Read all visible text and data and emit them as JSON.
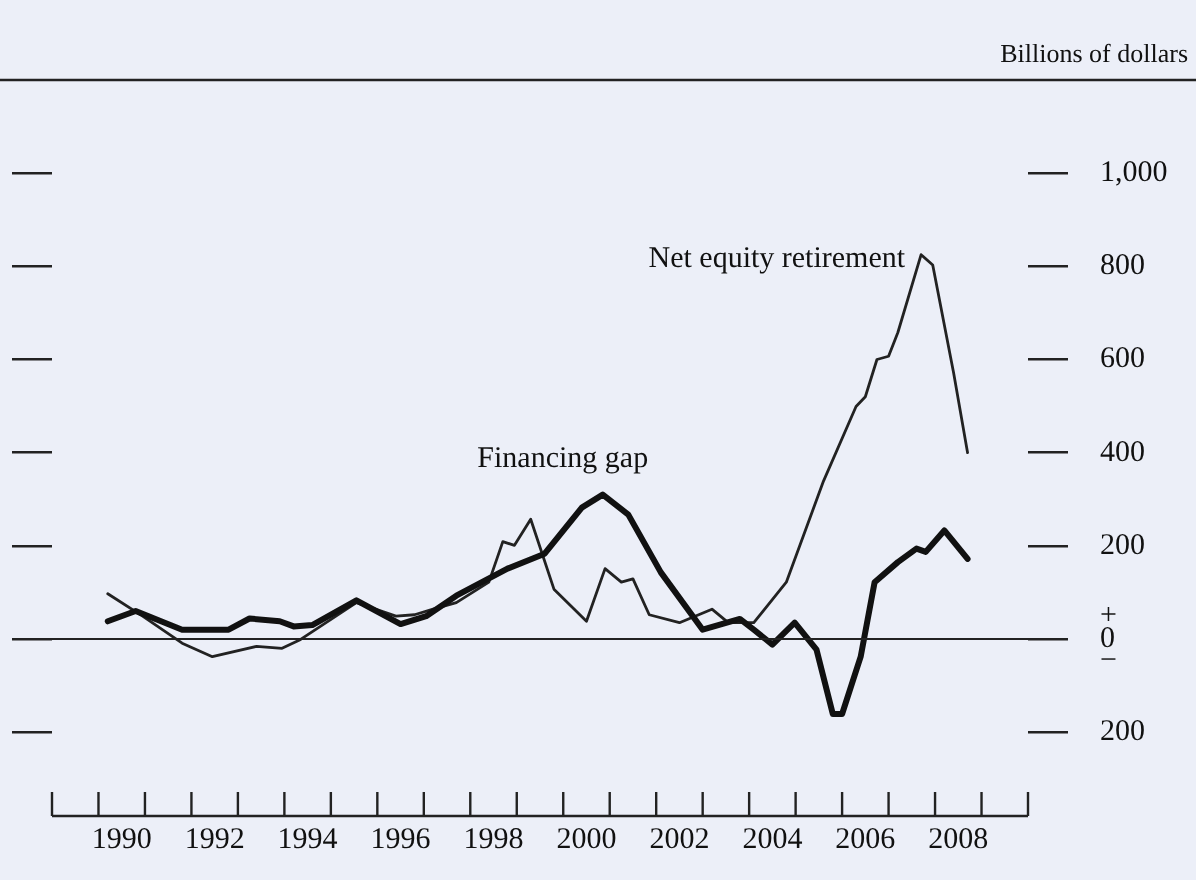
{
  "chart_data": {
    "type": "line",
    "ylabel": "Billions of dollars",
    "xlim": [
      1989,
      2010
    ],
    "xticks": [
      {
        "value": 1989,
        "label": null
      },
      {
        "value": 1990,
        "label": null
      },
      {
        "value": 1990.5,
        "label": "1990"
      },
      {
        "value": 1991,
        "label": null
      },
      {
        "value": 1992,
        "label": null
      },
      {
        "value": 1992.5,
        "label": "1992"
      },
      {
        "value": 1993,
        "label": null
      },
      {
        "value": 1994,
        "label": null
      },
      {
        "value": 1994.5,
        "label": "1994"
      },
      {
        "value": 1995,
        "label": null
      },
      {
        "value": 1996,
        "label": null
      },
      {
        "value": 1996.5,
        "label": "1996"
      },
      {
        "value": 1997,
        "label": null
      },
      {
        "value": 1998,
        "label": null
      },
      {
        "value": 1998.5,
        "label": "1998"
      },
      {
        "value": 1999,
        "label": null
      },
      {
        "value": 2000,
        "label": null
      },
      {
        "value": 2000.5,
        "label": "2000"
      },
      {
        "value": 2001,
        "label": null
      },
      {
        "value": 2002,
        "label": null
      },
      {
        "value": 2002.5,
        "label": "2002"
      },
      {
        "value": 2003,
        "label": null
      },
      {
        "value": 2004,
        "label": null
      },
      {
        "value": 2004.5,
        "label": "2004"
      },
      {
        "value": 2005,
        "label": null
      },
      {
        "value": 2006,
        "label": null
      },
      {
        "value": 2006.5,
        "label": "2006"
      },
      {
        "value": 2007,
        "label": null
      },
      {
        "value": 2008,
        "label": null
      },
      {
        "value": 2008.5,
        "label": "2008"
      },
      {
        "value": 2009,
        "label": null
      },
      {
        "value": 2010,
        "label": null
      }
    ],
    "ylim": [
      -380,
      1200
    ],
    "yticks": [
      {
        "value": -200,
        "label": "200"
      },
      {
        "value": 0,
        "label": "+\n0\n−"
      },
      200,
      400,
      600,
      800,
      {
        "value": 1000,
        "label": "1,000"
      }
    ],
    "grid": false,
    "legend": false,
    "marker": "none",
    "line_style": "solid",
    "ref_lines": [
      {
        "axis": "y",
        "value": 0
      }
    ],
    "series": [
      {
        "name": "Financing gap",
        "color": "#111111",
        "x": [
          1990.2,
          1990.8,
          1991.8,
          1992.8,
          1993.25,
          1993.9,
          1994.2,
          1994.6,
          1995.55,
          1996.5,
          1997.05,
          1997.7,
          1998.8,
          1999.6,
          2000.4,
          2000.85,
          2001.4,
          2002.1,
          2003.0,
          2003.8,
          2004.1,
          2004.5,
          2004.98,
          2005.45,
          2005.8,
          2006.0,
          2006.4,
          2006.7,
          2007.2,
          2007.6,
          2007.8,
          2008.2,
          2008.7
        ],
        "values": [
          38,
          60,
          20,
          20,
          44,
          38,
          27,
          30,
          83,
          32,
          49,
          93,
          151,
          183,
          282,
          310,
          267,
          143,
          20,
          43,
          20,
          -12,
          35,
          -23,
          -161,
          -161,
          -38,
          122,
          165,
          194,
          187,
          233,
          172
        ]
      },
      {
        "name": "Net equity retirement",
        "color": "#222222",
        "x": [
          1990.2,
          1990.95,
          1991.8,
          1992.45,
          1993.4,
          1993.95,
          1994.35,
          1995.55,
          1996.4,
          1996.8,
          1997.2,
          1997.7,
          1998.4,
          1998.7,
          1998.95,
          1999.3,
          1999.8,
          2000.5,
          2000.9,
          2001.25,
          2001.5,
          2001.85,
          2002.5,
          2003.2,
          2003.55,
          2004.1,
          2004.8,
          2005.6,
          2006.3,
          2006.5,
          2006.75,
          2007.0,
          2007.2,
          2007.7,
          2007.95,
          2008.4,
          2008.7
        ],
        "values": [
          97,
          49,
          -9,
          -38,
          -16,
          -20,
          -1,
          78,
          49,
          52,
          64,
          78,
          122,
          209,
          201,
          257,
          107,
          38,
          151,
          122,
          129,
          52,
          35,
          64,
          35,
          35,
          122,
          339,
          499,
          520,
          600,
          607,
          658,
          825,
          803,
          571,
          400
        ]
      }
    ]
  }
}
